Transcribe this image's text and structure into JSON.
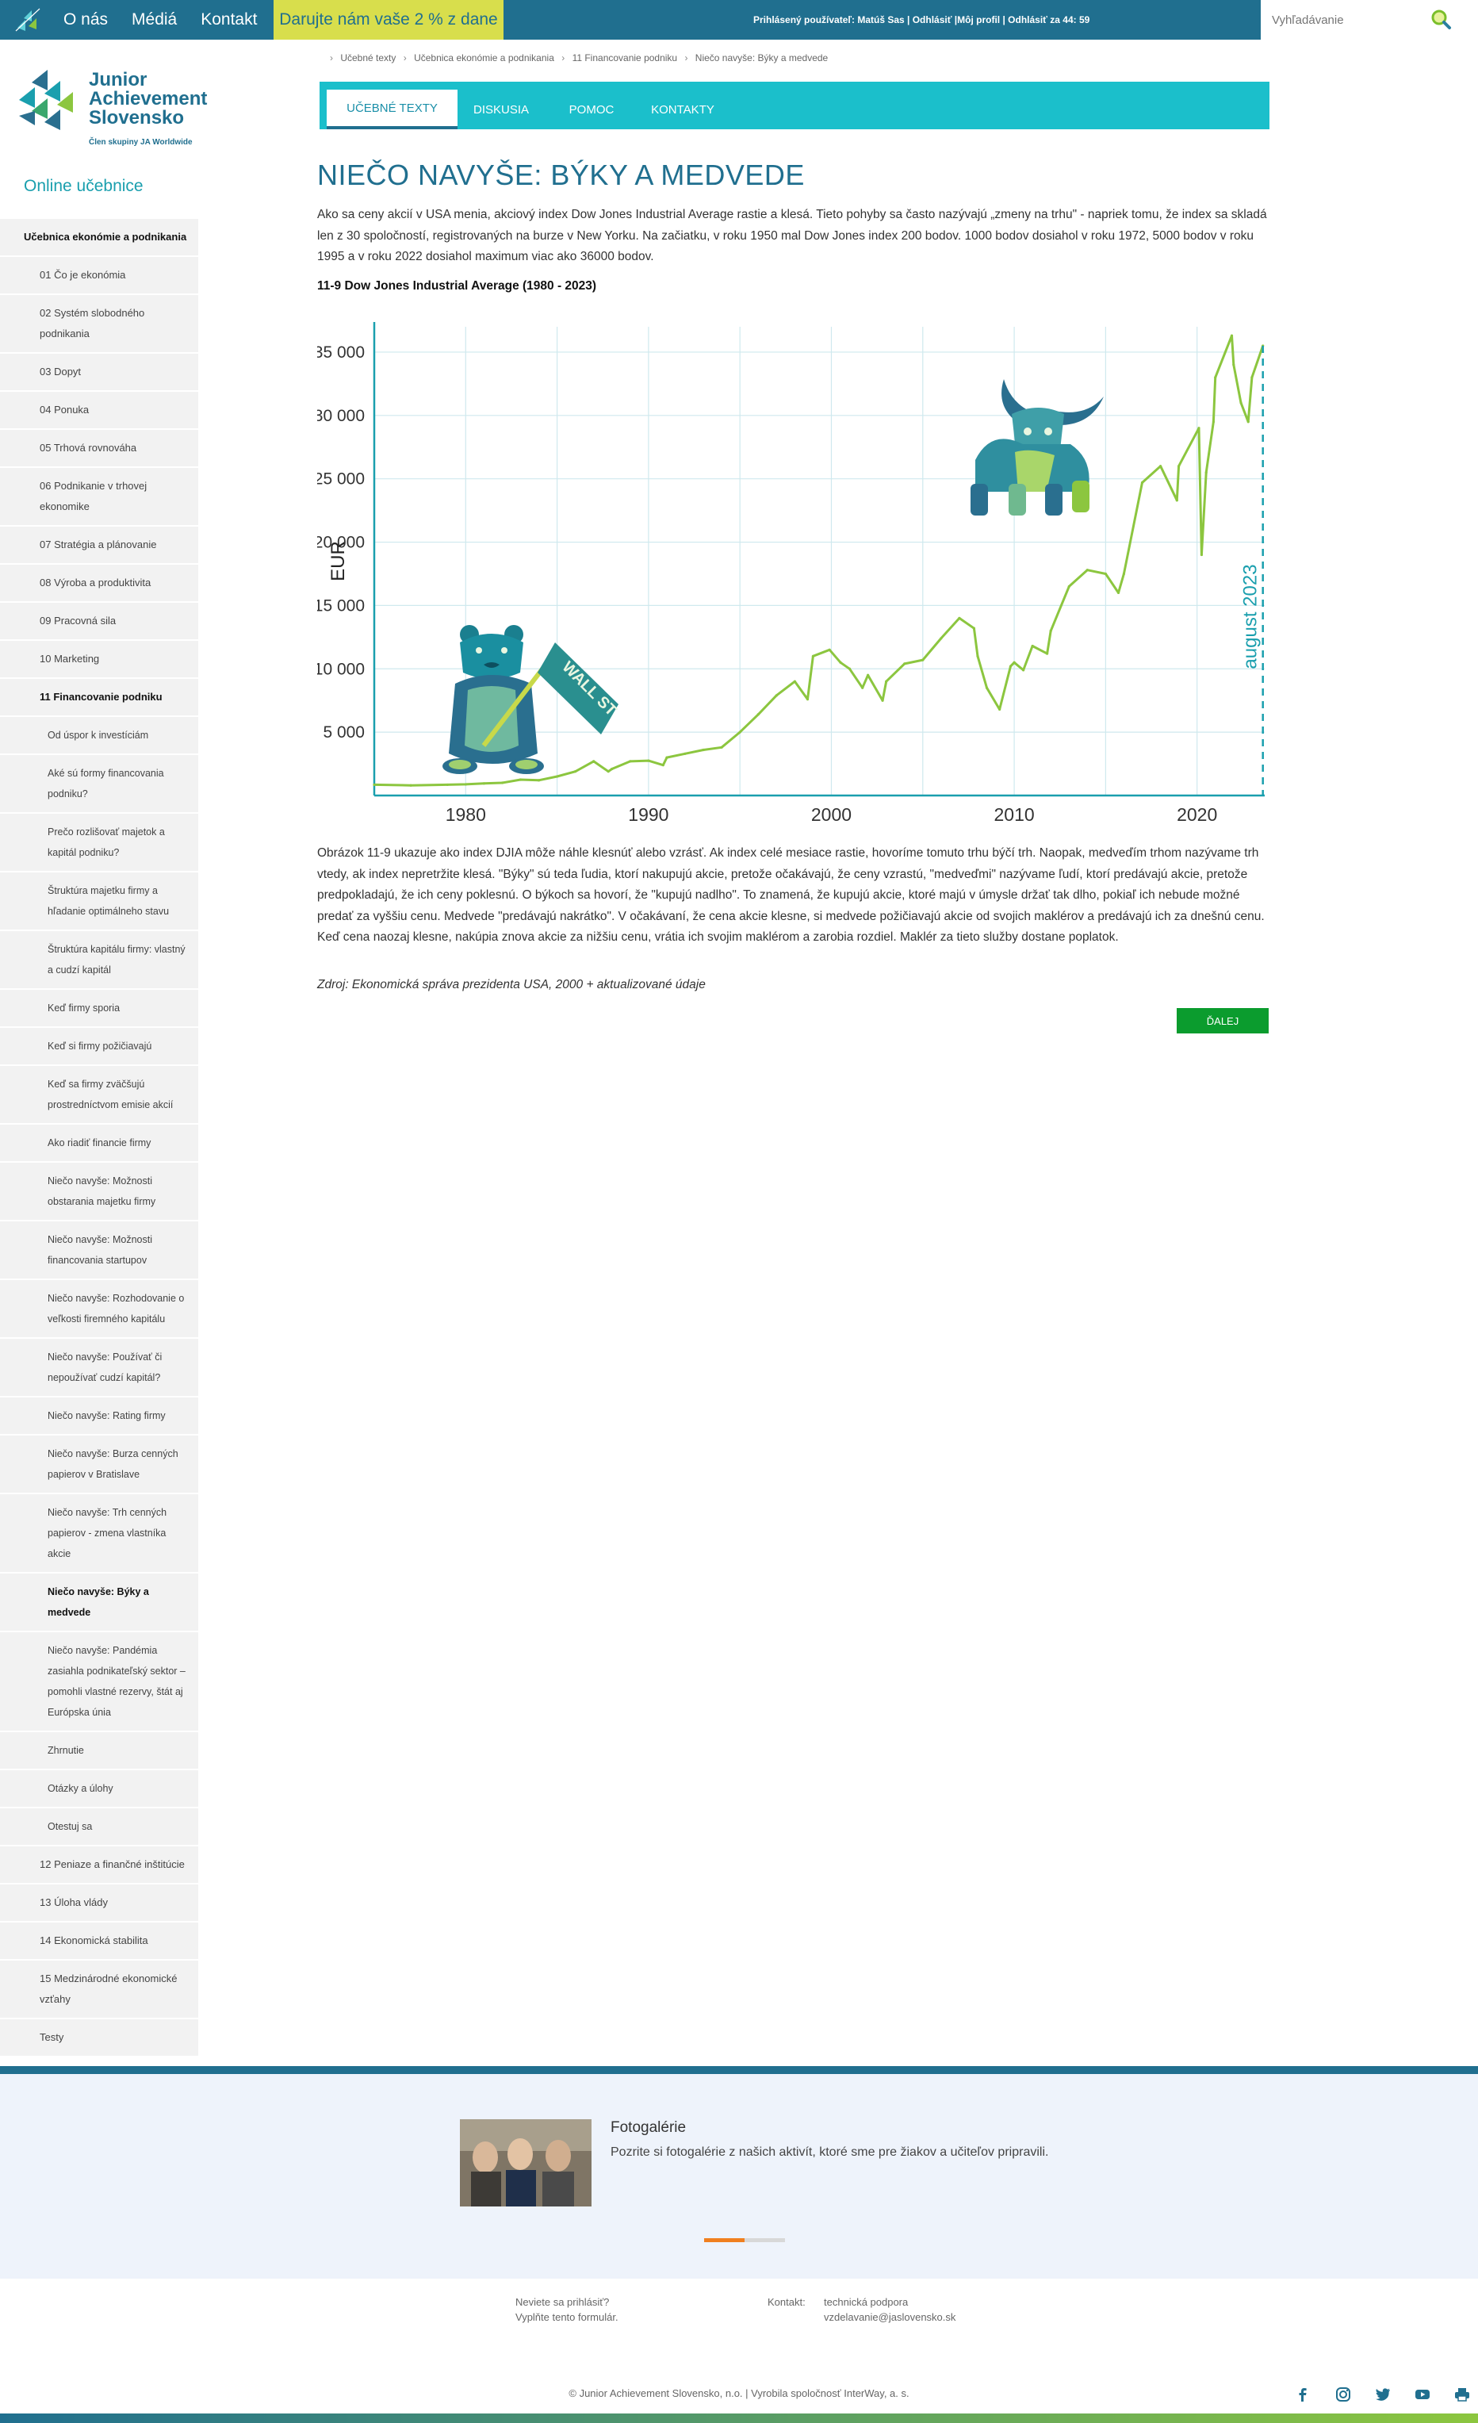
{
  "topbar": {
    "nav": [
      "O nás",
      "Médiá",
      "Kontakt"
    ],
    "donate": "Darujte nám vaše 2 % z dane",
    "user_info": "Prihlásený používateľ: Matúš Sas | Odhlásiť |Môj profil | Odhlásiť za 44: 59",
    "search_placeholder": "Vyhľadávanie"
  },
  "brand": {
    "line1": "Junior",
    "line2": "Achievement",
    "line3": "Slovensko",
    "tagline": "Člen skupiny JA Worldwide"
  },
  "sidebar": {
    "title": "Online učebnice",
    "items": [
      {
        "label": "Učebnica ekonómie a podnikania",
        "level": 0
      },
      {
        "label": "01 Čo je ekonómia",
        "level": 1
      },
      {
        "label": "02 Systém slobodného podnikania",
        "level": 1
      },
      {
        "label": "03 Dopyt",
        "level": 1
      },
      {
        "label": "04 Ponuka",
        "level": 1
      },
      {
        "label": "05 Trhová rovnováha",
        "level": 1
      },
      {
        "label": "06 Podnikanie v trhovej ekonomike",
        "level": 1
      },
      {
        "label": "07 Stratégia a plánovanie",
        "level": 1
      },
      {
        "label": "08 Výroba a produktivita",
        "level": 1
      },
      {
        "label": "09 Pracovná sila",
        "level": 1
      },
      {
        "label": "10 Marketing",
        "level": 1
      },
      {
        "label": "11 Financovanie podniku",
        "level": 1,
        "bold": true
      },
      {
        "label": "Od úspor k investíciám",
        "level": 2
      },
      {
        "label": "Aké sú formy financovania podniku?",
        "level": 2
      },
      {
        "label": "Prečo rozlišovať majetok a kapitál podniku?",
        "level": 2
      },
      {
        "label": "Štruktúra majetku firmy a hľadanie optimálneho stavu",
        "level": 2
      },
      {
        "label": "Štruktúra kapitálu firmy: vlastný a cudzí kapitál",
        "level": 2
      },
      {
        "label": "Keď firmy sporia",
        "level": 2
      },
      {
        "label": "Keď si firmy požičiavajú",
        "level": 2
      },
      {
        "label": "Keď sa firmy zväčšujú prostredníctvom emisie akcií",
        "level": 2
      },
      {
        "label": "Ako riadiť financie firmy",
        "level": 2
      },
      {
        "label": "Niečo navyše: Možnosti obstarania majetku firmy",
        "level": 2
      },
      {
        "label": "Niečo navyše: Možnosti financovania startupov",
        "level": 2
      },
      {
        "label": "Niečo navyše: Rozhodovanie o veľkosti firemného kapitálu",
        "level": 2
      },
      {
        "label": "Niečo navyše: Používať či nepoužívať cudzí kapitál?",
        "level": 2
      },
      {
        "label": "Niečo navyše: Rating firmy",
        "level": 2
      },
      {
        "label": "Niečo navyše: Burza cenných papierov v Bratislave",
        "level": 2
      },
      {
        "label": "Niečo navyše: Trh cenných papierov - zmena vlastníka akcie",
        "level": 2
      },
      {
        "label": "Niečo navyše: Býky a medvede",
        "level": 2,
        "bold": true
      },
      {
        "label": "Niečo navyše: Pandémia zasiahla podnikateľský sektor – pomohli vlastné rezervy, štát aj Európska únia",
        "level": 2
      },
      {
        "label": "Zhrnutie",
        "level": 2
      },
      {
        "label": "Otázky a úlohy",
        "level": 2
      },
      {
        "label": "Otestuj sa",
        "level": 2
      },
      {
        "label": "12 Peniaze a finančné inštitúcie",
        "level": 1
      },
      {
        "label": "13 Úloha vlády",
        "level": 1
      },
      {
        "label": "14 Ekonomická stabilita",
        "level": 1
      },
      {
        "label": "15 Medzinárodné ekonomické vzťahy",
        "level": 1
      },
      {
        "label": "Testy",
        "level": 1
      }
    ]
  },
  "breadcrumb": [
    "Učebné texty",
    "Učebnica ekonómie a podnikania",
    "11 Financovanie podniku",
    "Niečo navyše: Býky a medvede"
  ],
  "tabs": [
    "UČEBNÉ TEXTY",
    "DISKUSIA",
    "POMOC",
    "KONTAKTY"
  ],
  "article": {
    "title": "NIEČO NAVYŠE: BÝKY A MEDVEDE",
    "intro": "Ako sa ceny akcií v USA menia, akciový index Dow Jones Industrial Average rastie a klesá. Tieto pohyby sa často nazývajú „zmeny na trhu\" - napriek tomu, že index sa skladá len z 30 spoločností, registrovaných na burze v New Yorku. Na začiatku, v roku 1950 mal Dow Jones index 200 bodov. 1000 bodov dosiahol v roku 1972, 5000 bodov v roku 1995 a v roku 2022 dosiahol maximum viac ako 36000 bodov.",
    "chart_heading": "11-9 Dow Jones Industrial Average (1980 - 2023)",
    "body": "Obrázok 11-9 ukazuje ako index DJIA môže náhle klesnúť alebo vzrásť. Ak index celé mesiace rastie, hovoríme tomuto trhu býčí trh. Naopak, medveďím trhom nazývame trh vtedy, ak index nepretržite klesá. \"Býky\" sú teda ľudia, ktorí nakupujú akcie, pretože očakávajú, že ceny vzrastú, \"medveďmi\" nazývame ľudí, ktorí predávajú akcie, pretože predpokladajú, že ich ceny poklesnú. O býkoch sa hovorí, že \"kupujú nadlho\". To znamená, že kupujú akcie, ktoré majú v úmysle držať tak dlho, pokiaľ ich nebude možné predať za vyššiu cenu. Medvede \"predávajú nakrátko\". V očakávaní, že cena akcie klesne, si medvede požičiavajú akcie od svojich maklérov a predávajú ich za dnešnú cenu. Keď cena naozaj klesne, nakúpia znova akcie za nižšiu cenu, vrátia ich svojim maklérom a zarobia rozdiel. Maklér za tieto služby dostane poplatok.",
    "source": "Zdroj: Ekonomická správa prezidenta USA, 2000 + aktualizované údaje",
    "next_label": "ĎALEJ"
  },
  "chart_data": {
    "type": "line",
    "title": "11-9 Dow Jones Industrial Average (1980 - 2023)",
    "ylabel": "EUR",
    "xlim": [
      1975,
      2023.7
    ],
    "ylim": [
      0,
      37000
    ],
    "x_ticks": [
      1980,
      1990,
      2000,
      2010,
      2020
    ],
    "y_ticks": [
      5000,
      10000,
      15000,
      20000,
      25000,
      30000,
      35000
    ],
    "y_tick_labels": [
      "5 000",
      "10 000",
      "15 000",
      "20 000",
      "25 000",
      "30 000",
      "35 000"
    ],
    "annotation": "august 2023",
    "annotation_x": 2023.6,
    "bear_sign": "WALL ST",
    "grid": true,
    "line_color": "#8cc63f",
    "axis_color": "#1a9fae",
    "series": [
      {
        "x": [
          1975,
          1977,
          1979,
          1980,
          1981,
          1982,
          1983,
          1984,
          1985,
          1986,
          1987,
          1987.8,
          1988,
          1989,
          1990,
          1990.8,
          1991,
          1992,
          1993,
          1994,
          1995,
          1996,
          1997,
          1998,
          1998.7,
          1999,
          1999.9,
          2000.5,
          2001,
          2001.7,
          2002,
          2002.8,
          2003,
          2004,
          2005,
          2006,
          2007,
          2007.8,
          2008,
          2008.5,
          2009.2,
          2009.8,
          2010,
          2010.5,
          2011,
          2011.8,
          2012,
          2013,
          2014,
          2015,
          2015.7,
          2016,
          2017,
          2018,
          2018.9,
          2019,
          2020.1,
          2020.25,
          2020.5,
          2020.9,
          2021,
          2021.9,
          2022,
          2022.4,
          2022.8,
          2023,
          2023.6
        ],
        "y": [
          850,
          800,
          850,
          880,
          950,
          1000,
          1250,
          1200,
          1500,
          1900,
          2700,
          1900,
          2100,
          2700,
          2750,
          2400,
          3000,
          3300,
          3600,
          3800,
          5000,
          6400,
          7900,
          9000,
          7600,
          11000,
          11500,
          10500,
          10000,
          8500,
          9500,
          7500,
          9000,
          10400,
          10700,
          12400,
          14000,
          13200,
          11000,
          8500,
          6800,
          10200,
          10500,
          9900,
          11800,
          11200,
          13000,
          16500,
          17800,
          17500,
          16000,
          17500,
          24700,
          26000,
          23300,
          26000,
          29000,
          19000,
          25500,
          29500,
          33000,
          36300,
          34000,
          31000,
          29500,
          33000,
          35500
        ]
      }
    ]
  },
  "footer": {
    "gallery_title": "Fotogalérie",
    "gallery_desc": "Pozrite si fotogalérie z našich aktivít, ktoré sme pre žiakov a učiteľov pripravili.",
    "login_q": "Neviete sa prihlásiť?",
    "login_form": "Vyplňte tento formulár.",
    "contact_label": "Kontakt:",
    "contact_name": "technická podpora",
    "contact_email": "vzdelavanie@jaslovensko.sk",
    "copyright": "© Junior Achievement Slovensko, n.o. | Vyrobila spoločnosť InterWay, a. s."
  },
  "colors": {
    "primary": "#206f8f",
    "accent": "#1bbfcb",
    "donate_bg": "#d8de4c",
    "next_button": "#0b9c2e",
    "chart_line": "#8cc63f"
  }
}
